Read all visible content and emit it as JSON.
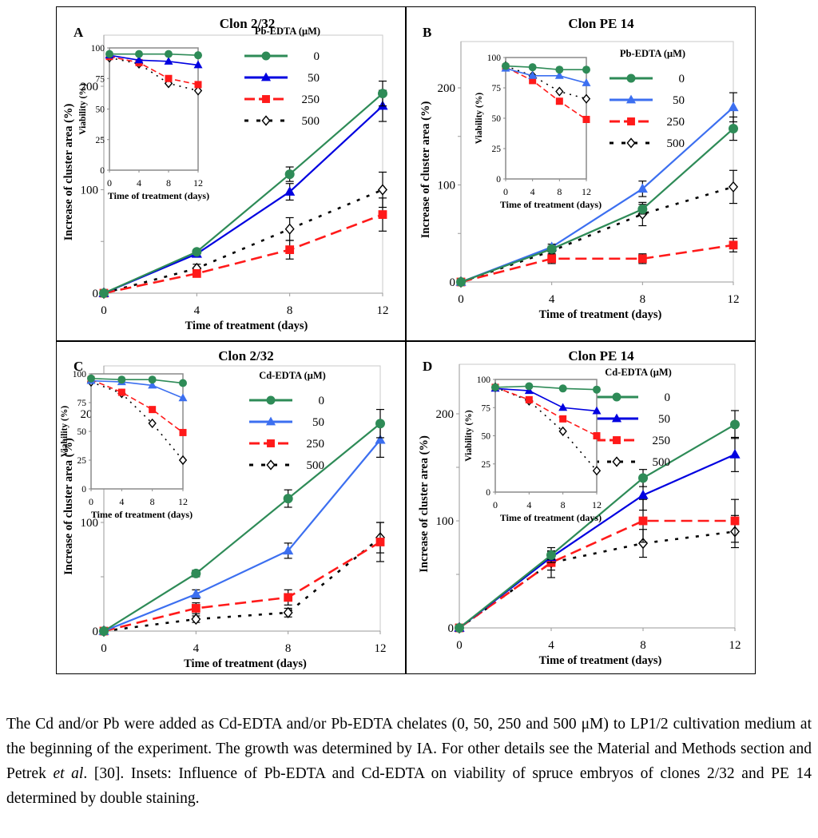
{
  "caption": {
    "parts": [
      "The Cd and/or Pb were added as Cd-EDTA and/or Pb-EDTA chelates (0, 50, 250 and 500 μM) to LP1/2 cultivation medium at the beginning of the experiment. The growth was determined by IA. For other details see the Material and Methods section and Petrek ",
      "et al",
      ". [30]. Insets: Influence of Pb-EDTA and Cd-EDTA on viability of spruce embryos of clones 2/32 and PE 14 determined by double staining."
    ]
  },
  "series_styles": {
    "0": {
      "color": "#2e8b57",
      "marker": "circle",
      "dash": "solid"
    },
    "50": {
      "color_pb_a": "#0000e0",
      "color": "#3c6ff0",
      "marker": "triangle",
      "dash": "solid"
    },
    "250": {
      "color": "#ff1a1a",
      "marker": "square",
      "dash": "dashed"
    },
    "500": {
      "color": "#000000",
      "marker": "diamond-open",
      "dash": "dotted"
    }
  },
  "chart_data": [
    {
      "type": "line",
      "panel_label": "A",
      "title": "Clon 2/32",
      "xlabel": "Time of treatment (days)",
      "ylabel": "Increase of cluster area (%)",
      "x": [
        0,
        4,
        8,
        12
      ],
      "xticks": [
        "0",
        "4",
        "8",
        "12"
      ],
      "yticks": [
        "0",
        "100",
        "200"
      ],
      "ylim": [
        0,
        250
      ],
      "legend_title": "Pb-EDTA (μM)",
      "legend_position": "top-right",
      "series": [
        {
          "name": "0",
          "color": "#2e8b57",
          "values": [
            0,
            40,
            115,
            193
          ],
          "errors": [
            0,
            2,
            7,
            12
          ]
        },
        {
          "name": "50",
          "color": "#0000e0",
          "values": [
            0,
            38,
            98,
            181
          ],
          "errors": [
            0,
            2,
            8,
            15
          ]
        },
        {
          "name": "250",
          "color": "#ff1a1a",
          "values": [
            0,
            19,
            42,
            76
          ],
          "errors": [
            0,
            2,
            9,
            16
          ]
        },
        {
          "name": "500",
          "color": "#000000",
          "values": [
            0,
            24,
            62,
            100
          ],
          "errors": [
            0,
            4,
            11,
            17
          ]
        }
      ],
      "inset": {
        "xlabel": "Time of treatment (days)",
        "ylabel": "Viability (%)",
        "x": [
          0,
          4,
          8,
          12
        ],
        "xticks": [
          "0",
          "4",
          "8",
          "12"
        ],
        "yticks": [
          "0",
          "25",
          "50",
          "75",
          "100"
        ],
        "ylim": [
          0,
          100
        ],
        "series": [
          {
            "name": "0",
            "values": [
              95,
              95,
              95,
              94
            ]
          },
          {
            "name": "50",
            "values": [
              94,
              90,
              89,
              86
            ]
          },
          {
            "name": "250",
            "values": [
              93,
              88,
              75,
              70
            ]
          },
          {
            "name": "500",
            "values": [
              92,
              87,
              71,
              65
            ]
          }
        ]
      }
    },
    {
      "type": "line",
      "panel_label": "B",
      "title": "Clon PE 14",
      "xlabel": "Time of treatment (days)",
      "ylabel": "Increase of cluster area (%)",
      "x": [
        0,
        4,
        8,
        12
      ],
      "xticks": [
        "0",
        "4",
        "8",
        "12"
      ],
      "yticks": [
        "0",
        "100",
        "200"
      ],
      "ylim": [
        0,
        250
      ],
      "legend_title": "Pb-EDTA (μM)",
      "legend_position": "top-right",
      "series": [
        {
          "name": "0",
          "color": "#2e8b57",
          "values": [
            0,
            34,
            75,
            158
          ],
          "errors": [
            0,
            3,
            5,
            12
          ]
        },
        {
          "name": "50",
          "color": "#3c6ff0",
          "values": [
            0,
            36,
            96,
            180
          ],
          "errors": [
            0,
            3,
            8,
            15
          ]
        },
        {
          "name": "250",
          "color": "#ff1a1a",
          "values": [
            0,
            24,
            24,
            38
          ],
          "errors": [
            0,
            5,
            5,
            7
          ]
        },
        {
          "name": "500",
          "color": "#000000",
          "values": [
            0,
            32,
            70,
            98
          ],
          "errors": [
            0,
            4,
            12,
            17
          ]
        }
      ],
      "inset": {
        "xlabel": "Time of treatment (days)",
        "ylabel": "Viability (%)",
        "x": [
          0,
          4,
          8,
          12
        ],
        "xticks": [
          "0",
          "4",
          "8",
          "12"
        ],
        "yticks": [
          "0",
          "25",
          "50",
          "75",
          "100"
        ],
        "ylim": [
          0,
          100
        ],
        "series": [
          {
            "name": "0",
            "values": [
              93,
              92,
              90,
              90
            ]
          },
          {
            "name": "50",
            "values": [
              91,
              85,
              85,
              79
            ]
          },
          {
            "name": "250",
            "values": [
              92,
              81,
              64,
              49
            ]
          },
          {
            "name": "500",
            "values": [
              93,
              85,
              72,
              66
            ]
          }
        ]
      }
    },
    {
      "type": "line",
      "panel_label": "C",
      "title": "Clon 2/32",
      "xlabel": "Time of treatment (days)",
      "ylabel": "Increase of cluster area (%)",
      "x": [
        0,
        4,
        8,
        12
      ],
      "xticks": [
        "0",
        "4",
        "8",
        "12"
      ],
      "yticks": [
        "0",
        "100",
        "200"
      ],
      "ylim": [
        0,
        250
      ],
      "legend_title": "Cd-EDTA (μM)",
      "legend_position": "top-right",
      "series": [
        {
          "name": "0",
          "color": "#2e8b57",
          "values": [
            0,
            53,
            122,
            191
          ],
          "errors": [
            0,
            3,
            8,
            13
          ]
        },
        {
          "name": "50",
          "color": "#3c6ff0",
          "values": [
            0,
            34,
            74,
            176
          ],
          "errors": [
            0,
            4,
            7,
            16
          ]
        },
        {
          "name": "250",
          "color": "#ff1a1a",
          "values": [
            0,
            21,
            31,
            82
          ],
          "errors": [
            0,
            5,
            7,
            18
          ]
        },
        {
          "name": "500",
          "color": "#000000",
          "values": [
            0,
            11,
            17,
            86
          ],
          "errors": [
            0,
            3,
            4,
            14
          ]
        }
      ],
      "inset": {
        "xlabel": "Time of treatment (days)",
        "ylabel": "Viability (%)",
        "x": [
          0,
          4,
          8,
          12
        ],
        "xticks": [
          "0",
          "4",
          "8",
          "12"
        ],
        "yticks": [
          "0",
          "25",
          "50",
          "75",
          "100"
        ],
        "ylim": [
          0,
          100
        ],
        "series": [
          {
            "name": "0",
            "values": [
              96,
              95,
              95,
              92
            ]
          },
          {
            "name": "50",
            "values": [
              94,
              93,
              90,
              79
            ]
          },
          {
            "name": "250",
            "values": [
              95,
              84,
              69,
              49
            ]
          },
          {
            "name": "500",
            "values": [
              93,
              83,
              57,
              25
            ]
          }
        ]
      }
    },
    {
      "type": "line",
      "panel_label": "D",
      "title": "Clon PE 14",
      "xlabel": "Time of treatment (days)",
      "ylabel": "Increase of cluster area (%)",
      "x": [
        0,
        4,
        8,
        12
      ],
      "xticks": [
        "0",
        "4",
        "8",
        "12"
      ],
      "yticks": [
        "0",
        "100",
        "200"
      ],
      "ylim": [
        0,
        250
      ],
      "legend_title": "Cd-EDTA (μM)",
      "legend_position": "top-right",
      "series": [
        {
          "name": "0",
          "color": "#2e8b57",
          "values": [
            0,
            68,
            140,
            190
          ],
          "errors": [
            0,
            4,
            8,
            13
          ]
        },
        {
          "name": "50",
          "color": "#0000e0",
          "values": [
            0,
            66,
            124,
            162
          ],
          "errors": [
            0,
            5,
            14,
            16
          ]
        },
        {
          "name": "250",
          "color": "#ff1a1a",
          "values": [
            0,
            61,
            100,
            100
          ],
          "errors": [
            0,
            7,
            20,
            20
          ]
        },
        {
          "name": "500",
          "color": "#000000",
          "values": [
            0,
            61,
            79,
            90
          ],
          "errors": [
            0,
            14,
            13,
            15
          ]
        }
      ],
      "inset": {
        "xlabel": "Time of treatment (days)",
        "ylabel": "Viability (%)",
        "x": [
          0,
          4,
          8,
          12
        ],
        "xticks": [
          "0",
          "4",
          "8",
          "12"
        ],
        "yticks": [
          "0",
          "25",
          "50",
          "75",
          "100"
        ],
        "ylim": [
          0,
          100
        ],
        "series": [
          {
            "name": "0",
            "values": [
              93,
              94,
              92,
              91
            ]
          },
          {
            "name": "50",
            "values": [
              92,
              90,
              75,
              72
            ]
          },
          {
            "name": "250",
            "values": [
              93,
              82,
              65,
              50
            ]
          },
          {
            "name": "500",
            "values": [
              93,
              81,
              54,
              19
            ]
          }
        ]
      }
    }
  ]
}
